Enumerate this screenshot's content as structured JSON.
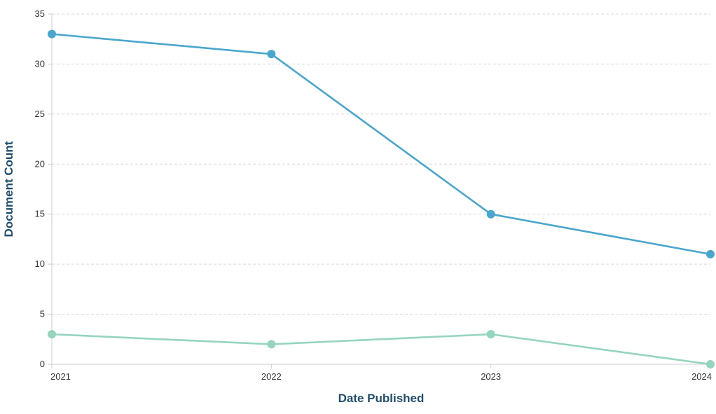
{
  "chart_data": {
    "type": "line",
    "xlabel": "Date Published",
    "ylabel": "Document Count",
    "x": [
      "2021",
      "2022",
      "2023",
      "2024"
    ],
    "ylim": [
      0,
      35
    ],
    "yticks": [
      0,
      5,
      10,
      15,
      20,
      25,
      30,
      35
    ],
    "grid": true,
    "legend": "none",
    "series": [
      {
        "values": [
          33,
          31,
          15,
          11
        ],
        "color": "#4aa6cc"
      },
      {
        "values": [
          3,
          2,
          3,
          0
        ],
        "color": "#95d5bd"
      }
    ]
  }
}
